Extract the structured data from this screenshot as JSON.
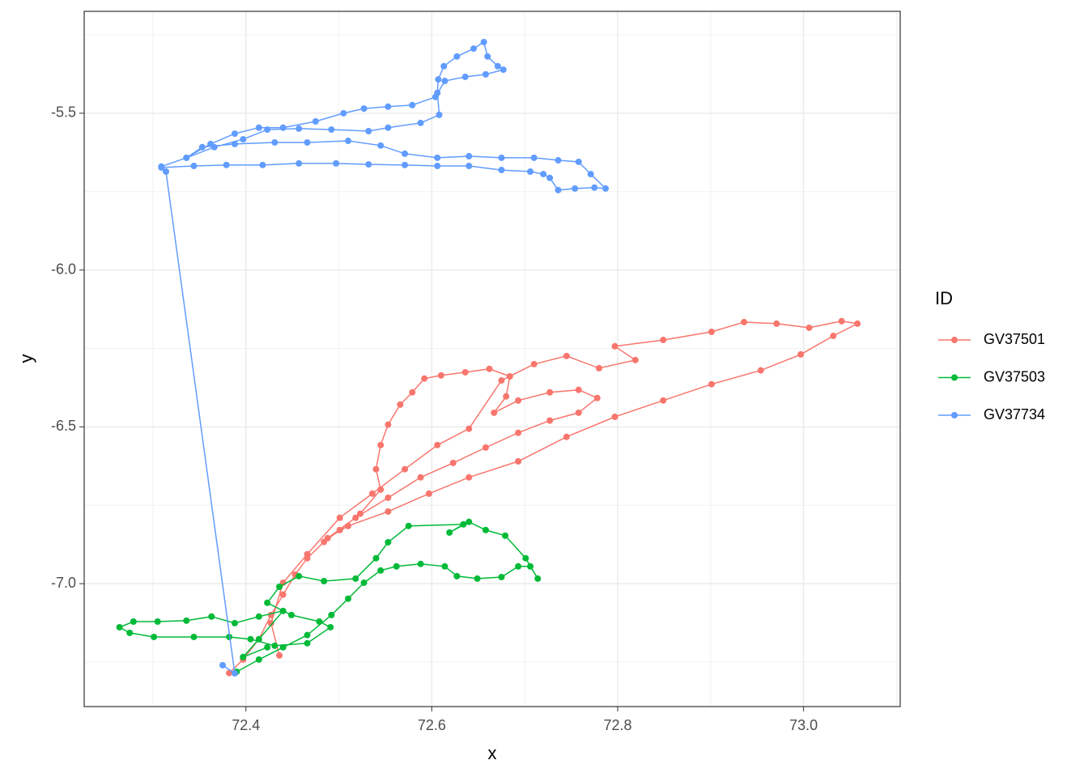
{
  "chart_data": {
    "type": "path",
    "x_label": "x",
    "y_label": "y",
    "legend_title": "ID",
    "legend": "right",
    "grid": true,
    "xlim": [
      72.226,
      73.104
    ],
    "ylim": [
      -7.392,
      -5.175
    ],
    "xticks": [
      72.4,
      72.6,
      72.8,
      {
        "value": 73,
        "label": "73.0"
      }
    ],
    "yticks": [
      -5.5,
      {
        "value": -6,
        "label": "-6.0"
      },
      -6.5,
      {
        "value": -7,
        "label": "-7.0"
      }
    ],
    "series": [
      {
        "name": "GV37501",
        "color": "#F8766D",
        "x": [
          72.382,
          72.397,
          72.414,
          72.427,
          72.44,
          72.453,
          72.466,
          72.484,
          72.501,
          72.523,
          72.545,
          72.54,
          72.545,
          72.553,
          72.566,
          72.579,
          72.592,
          72.61,
          72.636,
          72.662,
          72.684,
          72.68,
          72.667,
          72.693,
          72.727,
          72.758,
          72.778,
          72.758,
          72.727,
          72.693,
          72.658,
          72.623,
          72.588,
          72.553,
          72.518,
          72.488,
          72.51,
          72.553,
          72.597,
          72.64,
          72.693,
          72.745,
          72.797,
          72.849,
          72.901,
          72.954,
          72.997,
          73.032,
          73.058,
          73.041,
          73.006,
          72.971,
          72.936,
          72.901,
          72.849,
          72.797,
          72.819,
          72.78,
          72.745,
          72.71,
          72.675,
          72.64,
          72.606,
          72.571,
          72.536,
          72.501,
          72.466,
          72.44,
          72.427,
          72.436
        ],
        "values": [
          -7.285,
          -7.242,
          -7.177,
          -7.1,
          -7.035,
          -6.971,
          -6.919,
          -6.867,
          -6.829,
          -6.777,
          -6.7,
          -6.635,
          -6.558,
          -6.493,
          -6.429,
          -6.39,
          -6.346,
          -6.336,
          -6.326,
          -6.315,
          -6.339,
          -6.403,
          -6.455,
          -6.416,
          -6.39,
          -6.382,
          -6.408,
          -6.455,
          -6.48,
          -6.519,
          -6.566,
          -6.615,
          -6.661,
          -6.726,
          -6.79,
          -6.855,
          -6.816,
          -6.77,
          -6.713,
          -6.661,
          -6.61,
          -6.532,
          -6.468,
          -6.416,
          -6.364,
          -6.32,
          -6.269,
          -6.21,
          -6.171,
          -6.163,
          -6.184,
          -6.171,
          -6.166,
          -6.197,
          -6.223,
          -6.243,
          -6.287,
          -6.313,
          -6.274,
          -6.3,
          -6.352,
          -6.506,
          -6.558,
          -6.635,
          -6.713,
          -6.79,
          -6.906,
          -6.997,
          -7.126,
          -7.229
        ]
      },
      {
        "name": "GV37503",
        "color": "#00BA38",
        "x": [
          72.39,
          72.414,
          72.44,
          72.466,
          72.492,
          72.51,
          72.527,
          72.545,
          72.562,
          72.588,
          72.614,
          72.627,
          72.649,
          72.675,
          72.693,
          72.706,
          72.714,
          72.701,
          72.679,
          72.658,
          72.64,
          72.619,
          72.634,
          72.575,
          72.553,
          72.54,
          72.518,
          72.484,
          72.457,
          72.436,
          72.423,
          72.449,
          72.479,
          72.491,
          72.466,
          72.431,
          72.405,
          72.382,
          72.344,
          72.301,
          72.275,
          72.264,
          72.279,
          72.305,
          72.336,
          72.363,
          72.388,
          72.414,
          72.44,
          72.414,
          72.397,
          72.423
        ],
        "values": [
          -7.281,
          -7.242,
          -7.203,
          -7.164,
          -7.1,
          -7.048,
          -6.997,
          -6.958,
          -6.945,
          -6.937,
          -6.945,
          -6.976,
          -6.984,
          -6.979,
          -6.945,
          -6.945,
          -6.984,
          -6.919,
          -6.847,
          -6.829,
          -6.803,
          -6.837,
          -6.811,
          -6.816,
          -6.868,
          -6.919,
          -6.984,
          -6.992,
          -6.976,
          -7.01,
          -7.061,
          -7.1,
          -7.121,
          -7.139,
          -7.19,
          -7.198,
          -7.177,
          -7.17,
          -7.17,
          -7.17,
          -7.157,
          -7.139,
          -7.121,
          -7.121,
          -7.118,
          -7.105,
          -7.126,
          -7.105,
          -7.087,
          -7.177,
          -7.234,
          -7.203
        ]
      },
      {
        "name": "GV37734",
        "color": "#619CFF",
        "x": [
          72.375,
          72.388,
          72.314,
          72.309,
          72.336,
          72.366,
          72.397,
          72.423,
          72.457,
          72.492,
          72.532,
          72.553,
          72.588,
          72.608,
          72.606,
          72.607,
          72.613,
          72.627,
          72.645,
          72.656,
          72.66,
          72.671,
          72.677,
          72.658,
          72.636,
          72.614,
          72.604,
          72.579,
          72.553,
          72.527,
          72.505,
          72.475,
          72.44,
          72.414,
          72.388,
          72.362,
          72.336,
          72.353,
          72.388,
          72.431,
          72.466,
          72.51,
          72.545,
          72.571,
          72.606,
          72.64,
          72.675,
          72.71,
          72.736,
          72.758,
          72.771,
          72.787,
          72.775,
          72.754,
          72.736,
          72.727,
          72.72,
          72.706,
          72.675,
          72.64,
          72.606,
          72.571,
          72.532,
          72.497,
          72.457,
          72.418,
          72.379,
          72.344,
          72.309
        ],
        "values": [
          -7.26,
          -7.286,
          -5.686,
          -5.67,
          -5.642,
          -5.608,
          -5.583,
          -5.552,
          -5.549,
          -5.552,
          -5.557,
          -5.546,
          -5.531,
          -5.505,
          -5.435,
          -5.392,
          -5.35,
          -5.319,
          -5.294,
          -5.273,
          -5.319,
          -5.35,
          -5.361,
          -5.376,
          -5.384,
          -5.397,
          -5.448,
          -5.474,
          -5.479,
          -5.485,
          -5.5,
          -5.526,
          -5.546,
          -5.546,
          -5.565,
          -5.598,
          -5.642,
          -5.608,
          -5.598,
          -5.593,
          -5.593,
          -5.588,
          -5.603,
          -5.629,
          -5.642,
          -5.637,
          -5.642,
          -5.642,
          -5.65,
          -5.655,
          -5.694,
          -5.74,
          -5.737,
          -5.74,
          -5.745,
          -5.706,
          -5.694,
          -5.686,
          -5.681,
          -5.668,
          -5.668,
          -5.665,
          -5.663,
          -5.66,
          -5.66,
          -5.665,
          -5.665,
          -5.668,
          -5.673
        ]
      }
    ]
  }
}
